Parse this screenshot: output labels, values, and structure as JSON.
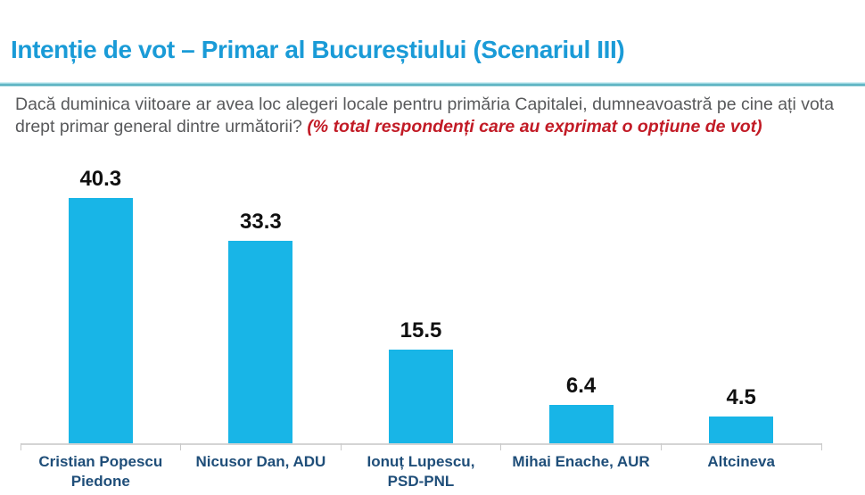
{
  "slide": {
    "title": "Intenție de vot – Primar al Bucureștiului (Scenariul III)",
    "question": "Dacă duminica viitoare ar avea loc alegeri locale pentru primăria Capitalei,  dumneavoastră pe cine ați vota drept primar general dintre următorii? ",
    "question_note": "(% total respondenți care au exprimat o opțiune de vot)"
  },
  "colors": {
    "title_blue": "#1a9bd7",
    "bar_cyan": "#18b5e7",
    "category_navy": "#1f4e79",
    "value_black": "#101010",
    "question_gray": "#58595b",
    "note_red": "#c21b26",
    "axis_gray": "#d4d4d4",
    "divider_teal": "#3fa3b3"
  },
  "chart_data": {
    "type": "bar",
    "title": "Intenție de vot – Primar al Bucureștiului (Scenariul III)",
    "subtitle": "Dacă duminica viitoare ar avea loc alegeri locale pentru primăria Capitalei, dumneavoastră pe cine ați vota drept primar general dintre următorii?",
    "unit_note": "% total respondenți care au exprimat o opțiune de vot",
    "categories": [
      "Cristian Popescu Piedone",
      "Nicusor Dan, ADU",
      "Ionuț Lupescu, PSD-PNL",
      "Mihai Enache, AUR",
      "Altcineva"
    ],
    "values": [
      40.3,
      33.3,
      15.5,
      6.4,
      4.5
    ],
    "xlabel": "",
    "ylabel": "",
    "ylim": [
      0,
      46.5
    ],
    "grid": false,
    "legend": false,
    "data_labels": true,
    "bar_color": "#18b5e7"
  }
}
